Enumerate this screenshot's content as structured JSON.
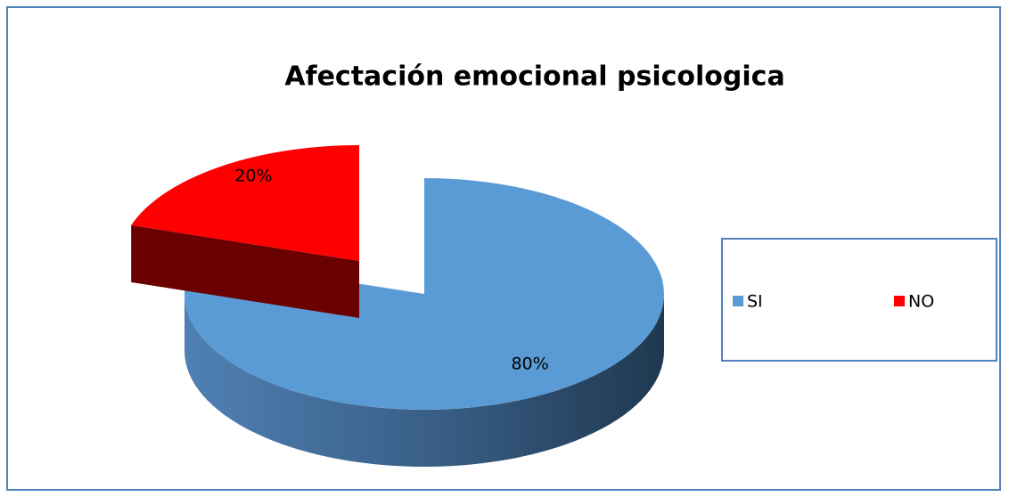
{
  "chart_data": {
    "type": "pie",
    "title": "Afectación emocional psicologica",
    "categories": [
      "SI",
      "NO"
    ],
    "values": [
      80,
      20
    ],
    "value_labels": [
      "80%",
      "20%"
    ],
    "colors": [
      "#5b9bd5",
      "#ff0000"
    ],
    "legend": "right"
  }
}
